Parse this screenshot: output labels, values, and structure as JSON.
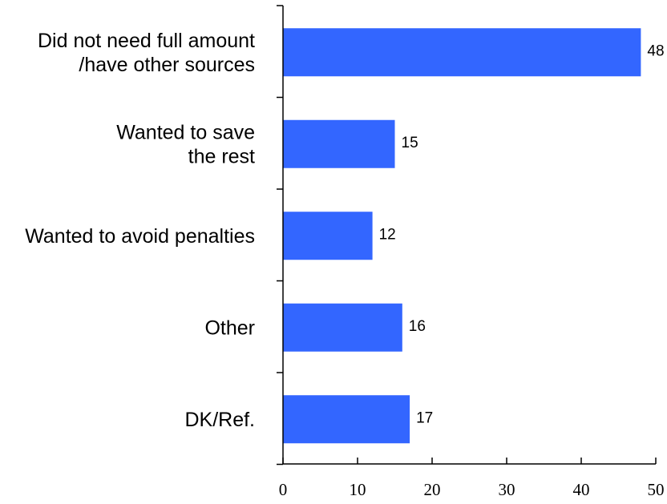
{
  "chart_data": {
    "type": "bar",
    "orientation": "horizontal",
    "categories": [
      [
        "Did not need full amount",
        "/have other sources"
      ],
      [
        "Wanted to save",
        "the rest"
      ],
      [
        "Wanted to avoid penalties"
      ],
      [
        "Other"
      ],
      [
        "DK/Ref."
      ]
    ],
    "values": [
      48,
      15,
      12,
      16,
      17
    ],
    "value_labels": [
      "48",
      "15",
      "12",
      "16",
      "17"
    ],
    "xlim": [
      0,
      50
    ],
    "x_ticks": [
      0,
      10,
      20,
      30,
      40,
      50
    ],
    "x_tick_labels": [
      "0",
      "10",
      "20",
      "30",
      "40",
      "50"
    ],
    "bar_color": "#3366FF",
    "grid": false,
    "legend": "none"
  }
}
